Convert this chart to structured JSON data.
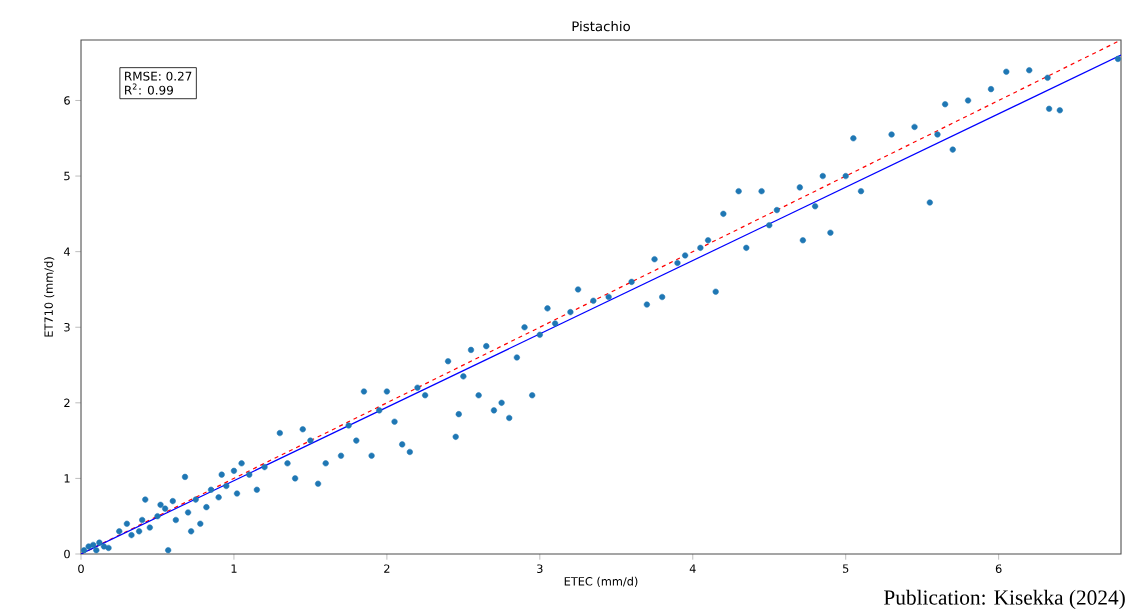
{
  "chart_data": {
    "type": "scatter",
    "title": "Pistachio",
    "xlabel": "ETEC (mm/d)",
    "ylabel": "ET710 (mm/d)",
    "xlim": [
      0,
      6.8
    ],
    "ylim": [
      0,
      6.8
    ],
    "xticks": [
      0,
      1,
      2,
      3,
      4,
      5,
      6
    ],
    "yticks": [
      0,
      1,
      2,
      3,
      4,
      5,
      6
    ],
    "grid": false,
    "annotations": [
      "RMSE: 0.27",
      "R$^{2}$: 0.99",
      "Publication: Kisekka (2024)"
    ],
    "series": [
      {
        "marker": "circle",
        "color": "#1f77b4",
        "x": [
          0.02,
          0.05,
          0.08,
          0.1,
          0.12,
          0.15,
          0.18,
          0.25,
          0.3,
          0.33,
          0.38,
          0.4,
          0.42,
          0.45,
          0.5,
          0.52,
          0.55,
          0.57,
          0.6,
          0.62,
          0.68,
          0.7,
          0.72,
          0.75,
          0.78,
          0.82,
          0.85,
          0.9,
          0.92,
          0.95,
          1.0,
          1.02,
          1.05,
          1.1,
          1.15,
          1.2,
          1.3,
          1.35,
          1.4,
          1.45,
          1.5,
          1.55,
          1.6,
          1.7,
          1.75,
          1.8,
          1.85,
          1.9,
          1.95,
          2.0,
          2.05,
          2.1,
          2.15,
          2.2,
          2.25,
          2.4,
          2.45,
          2.47,
          2.5,
          2.55,
          2.6,
          2.65,
          2.7,
          2.75,
          2.8,
          2.85,
          2.9,
          2.95,
          3.0,
          3.05,
          3.1,
          3.2,
          3.25,
          3.35,
          3.45,
          3.6,
          3.7,
          3.75,
          3.8,
          3.9,
          3.95,
          4.05,
          4.1,
          4.15,
          4.2,
          4.3,
          4.35,
          4.45,
          4.5,
          4.55,
          4.7,
          4.72,
          4.8,
          4.85,
          4.9,
          5.0,
          5.05,
          5.1,
          5.3,
          5.45,
          5.55,
          5.6,
          5.65,
          5.7,
          5.8,
          5.95,
          6.05,
          6.2,
          6.32,
          6.33,
          6.4,
          6.78
        ],
        "values": [
          0.05,
          0.1,
          0.12,
          0.05,
          0.15,
          0.1,
          0.08,
          0.3,
          0.4,
          0.25,
          0.3,
          0.45,
          0.72,
          0.35,
          0.5,
          0.65,
          0.6,
          0.05,
          0.7,
          0.45,
          1.02,
          0.55,
          0.3,
          0.72,
          0.4,
          0.62,
          0.85,
          0.75,
          1.05,
          0.9,
          1.1,
          0.8,
          1.2,
          1.05,
          0.85,
          1.15,
          1.6,
          1.2,
          1.0,
          1.65,
          1.5,
          0.93,
          1.2,
          1.3,
          1.7,
          1.5,
          2.15,
          1.3,
          1.9,
          2.15,
          1.75,
          1.45,
          1.35,
          2.2,
          2.1,
          2.55,
          1.55,
          1.85,
          2.35,
          2.7,
          2.1,
          2.75,
          1.9,
          2.0,
          1.8,
          2.6,
          3.0,
          2.1,
          2.9,
          3.25,
          3.05,
          3.2,
          3.5,
          3.35,
          3.4,
          3.6,
          3.3,
          3.9,
          3.4,
          3.85,
          3.95,
          4.05,
          4.15,
          3.47,
          4.5,
          4.8,
          4.05,
          4.8,
          4.35,
          4.55,
          4.85,
          4.15,
          4.6,
          5.0,
          4.25,
          5.0,
          5.5,
          4.8,
          5.55,
          5.65,
          4.65,
          5.55,
          5.95,
          5.35,
          6.0,
          6.15,
          6.38,
          6.4,
          6.3,
          5.89,
          5.87,
          6.55
        ]
      },
      {
        "type": "line",
        "marker": "none",
        "color": "#ff0000",
        "line_style": "dashed",
        "x": [
          0,
          6.8
        ],
        "values": [
          0,
          6.8
        ]
      },
      {
        "type": "line",
        "marker": "none",
        "color": "#0000ff",
        "line_style": "solid",
        "x": [
          0,
          6.8
        ],
        "values": [
          0,
          6.6
        ]
      }
    ]
  }
}
